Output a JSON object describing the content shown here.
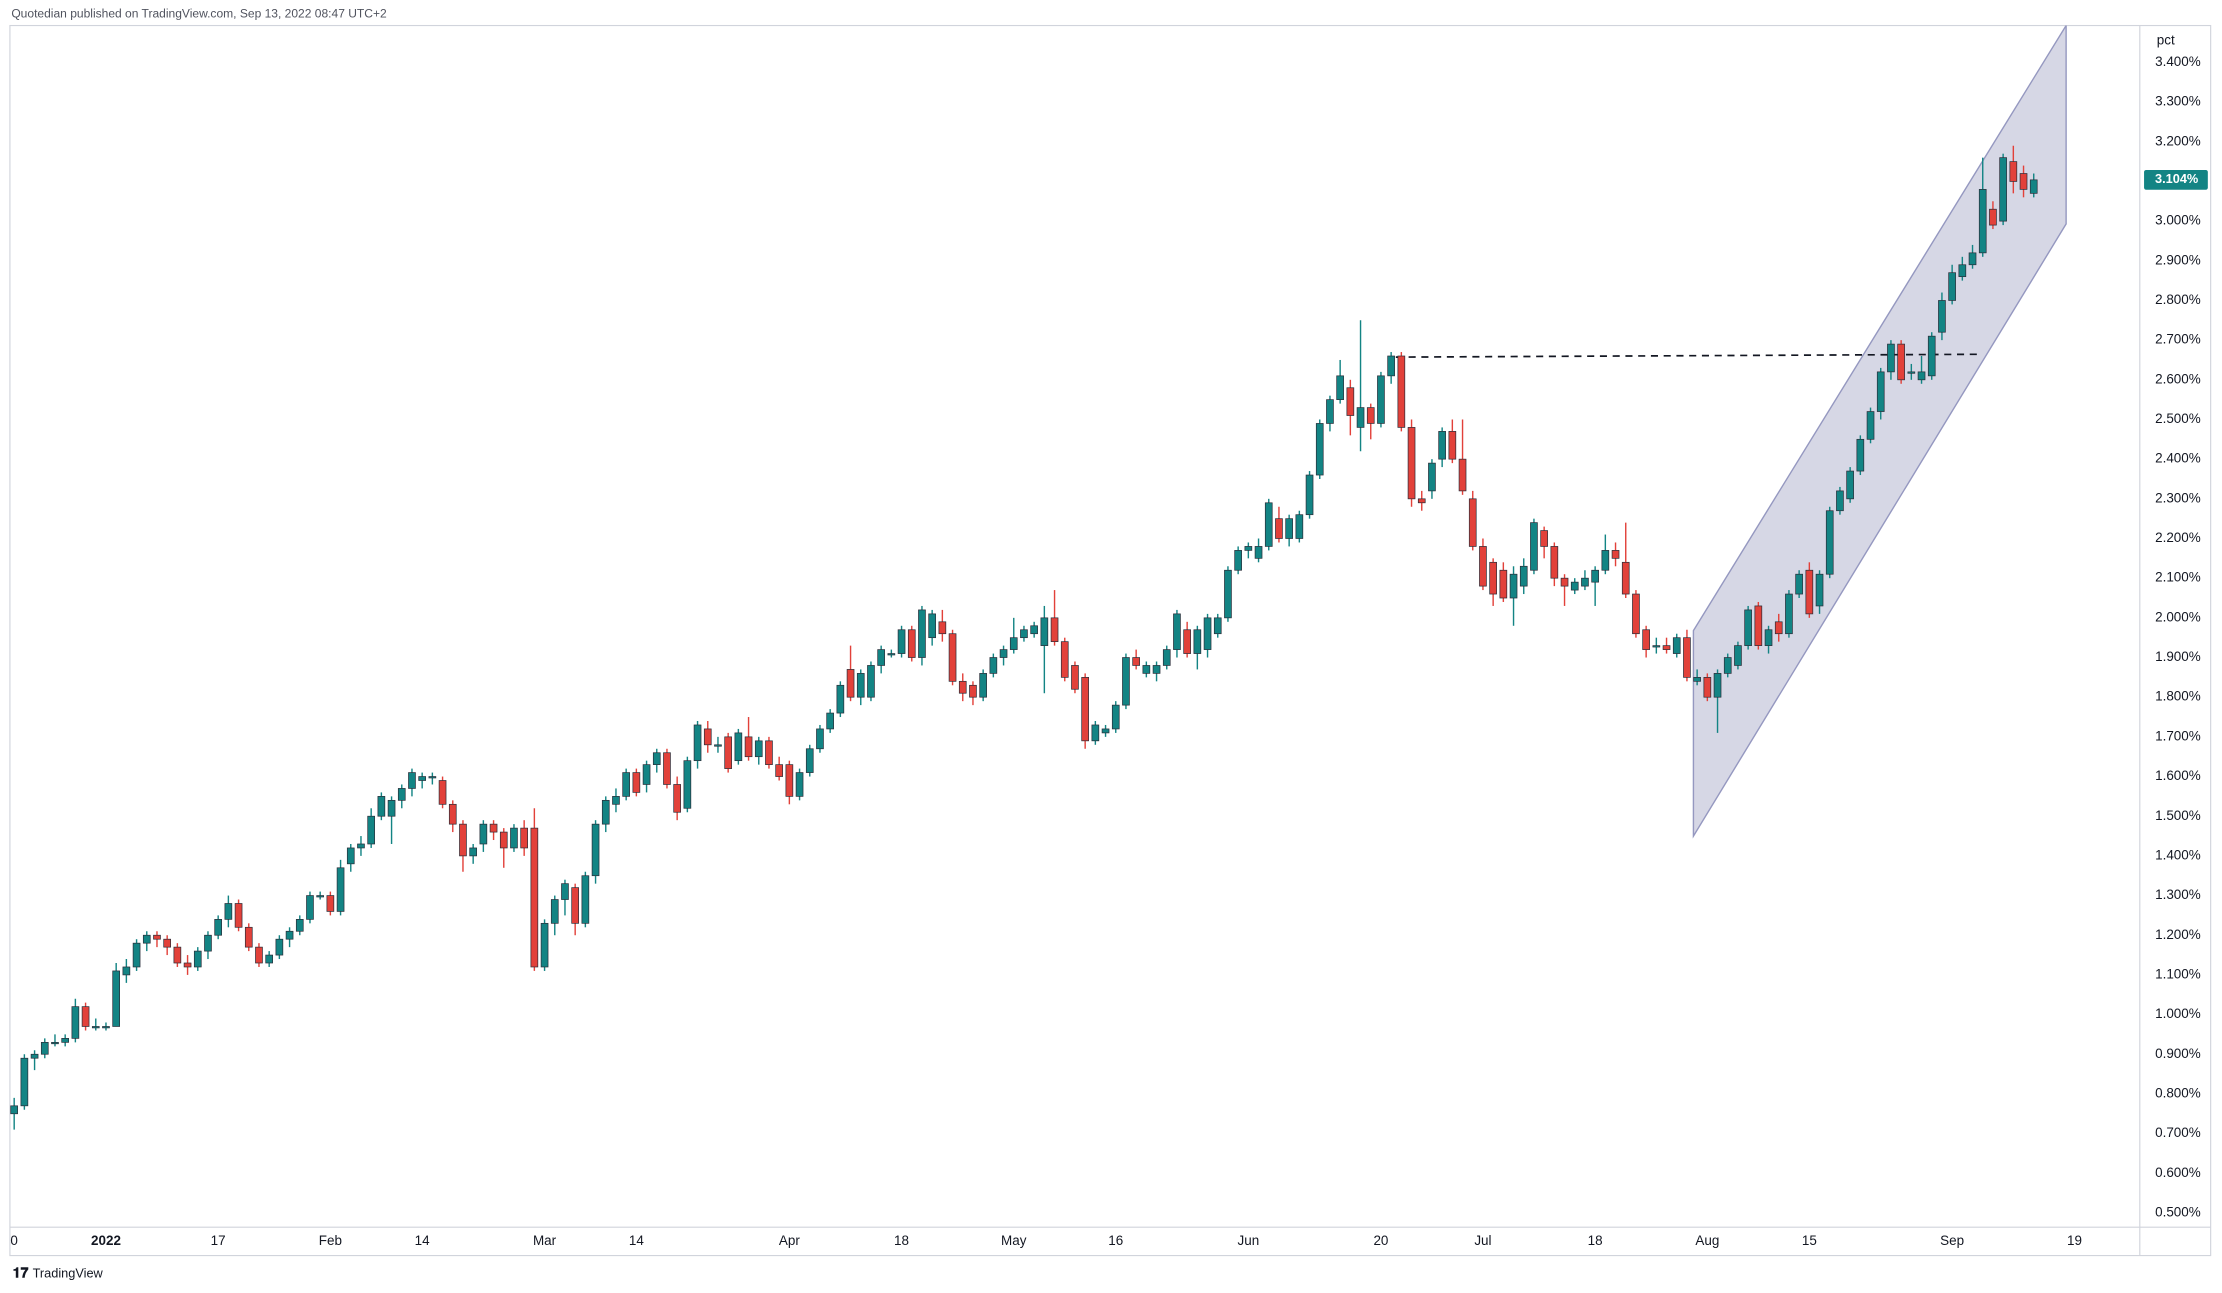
{
  "header": {
    "text": "Quotedian published on TradingView.com, Sep 13, 2022 08:47 UTC+2"
  },
  "footer": {
    "logo": "TradingView"
  },
  "chart_data": {
    "type": "candlestick",
    "y_axis_label": "pct",
    "grid": false,
    "xlim": [
      -1.39,
      208.4
    ],
    "xticks": [
      {
        "value": 0,
        "label": "0"
      },
      {
        "value": 9,
        "label": "2022"
      },
      {
        "value": 20,
        "label": "17"
      },
      {
        "value": 31,
        "label": "Feb"
      },
      {
        "value": 40,
        "label": "14"
      },
      {
        "value": 52,
        "label": "Mar"
      },
      {
        "value": 61,
        "label": "14"
      },
      {
        "value": 76,
        "label": "Apr"
      },
      {
        "value": 87,
        "label": "18"
      },
      {
        "value": 98,
        "label": "May"
      },
      {
        "value": 108,
        "label": "16"
      },
      {
        "value": 121,
        "label": "Jun"
      },
      {
        "value": 134,
        "label": "20"
      },
      {
        "value": 144,
        "label": "Jul"
      },
      {
        "value": 155,
        "label": "18"
      },
      {
        "value": 166,
        "label": "Aug"
      },
      {
        "value": 176,
        "label": "15"
      },
      {
        "value": 190,
        "label": "Sep"
      },
      {
        "value": 202,
        "label": "19"
      }
    ],
    "ylim": [
      0.464,
      3.493
    ],
    "yticks": [
      {
        "value": 0.5,
        "label": "0.500%"
      },
      {
        "value": 0.6,
        "label": "0.600%"
      },
      {
        "value": 0.7,
        "label": "0.700%"
      },
      {
        "value": 0.8,
        "label": "0.800%"
      },
      {
        "value": 0.9,
        "label": "0.900%"
      },
      {
        "value": 1.0,
        "label": "1.000%"
      },
      {
        "value": 1.1,
        "label": "1.100%"
      },
      {
        "value": 1.2,
        "label": "1.200%"
      },
      {
        "value": 1.3,
        "label": "1.300%"
      },
      {
        "value": 1.4,
        "label": "1.400%"
      },
      {
        "value": 1.5,
        "label": "1.500%"
      },
      {
        "value": 1.6,
        "label": "1.600%"
      },
      {
        "value": 1.7,
        "label": "1.700%"
      },
      {
        "value": 1.8,
        "label": "1.800%"
      },
      {
        "value": 1.9,
        "label": "1.900%"
      },
      {
        "value": 2.0,
        "label": "2.000%"
      },
      {
        "value": 2.1,
        "label": "2.100%"
      },
      {
        "value": 2.2,
        "label": "2.200%"
      },
      {
        "value": 2.3,
        "label": "2.300%"
      },
      {
        "value": 2.4,
        "label": "2.400%"
      },
      {
        "value": 2.5,
        "label": "2.500%"
      },
      {
        "value": 2.6,
        "label": "2.600%"
      },
      {
        "value": 2.7,
        "label": "2.700%"
      },
      {
        "value": 2.8,
        "label": "2.800%"
      },
      {
        "value": 2.9,
        "label": "2.900%"
      },
      {
        "value": 3.0,
        "label": "3.000%"
      },
      {
        "value": 3.1,
        "label": "3.100%"
      },
      {
        "value": 3.2,
        "label": "3.200%"
      },
      {
        "value": 3.3,
        "label": "3.300%"
      },
      {
        "value": 3.4,
        "label": "3.400%"
      }
    ],
    "series": [
      {
        "up_color": "#138484",
        "down_color": "#e2413a",
        "last_label": "3.104%",
        "open": [
          0.75,
          0.77,
          0.89,
          0.9,
          0.93,
          0.93,
          0.94,
          1.02,
          0.97,
          0.97,
          0.97,
          1.1,
          1.12,
          1.18,
          1.2,
          1.19,
          1.17,
          1.13,
          1.12,
          1.16,
          1.2,
          1.24,
          1.28,
          1.22,
          1.17,
          1.13,
          1.15,
          1.19,
          1.21,
          1.24,
          1.3,
          1.3,
          1.26,
          1.38,
          1.42,
          1.43,
          1.5,
          1.5,
          1.54,
          1.57,
          1.59,
          1.6,
          1.59,
          1.53,
          1.48,
          1.4,
          1.43,
          1.48,
          1.46,
          1.42,
          1.47,
          1.47,
          1.12,
          1.23,
          1.29,
          1.32,
          1.23,
          1.35,
          1.48,
          1.53,
          1.55,
          1.61,
          1.58,
          1.63,
          1.66,
          1.58,
          1.52,
          1.64,
          1.72,
          1.68,
          1.7,
          1.64,
          1.7,
          1.65,
          1.69,
          1.63,
          1.63,
          1.55,
          1.61,
          1.67,
          1.72,
          1.76,
          1.87,
          1.8,
          1.8,
          1.88,
          1.91,
          1.91,
          1.97,
          1.9,
          1.95,
          1.99,
          1.96,
          1.84,
          1.83,
          1.8,
          1.86,
          1.9,
          1.92,
          1.95,
          1.96,
          1.93,
          2.0,
          1.94,
          1.88,
          1.85,
          1.69,
          1.71,
          1.72,
          1.78,
          1.9,
          1.86,
          1.86,
          1.88,
          1.92,
          1.97,
          1.91,
          1.92,
          1.96,
          2.0,
          2.12,
          2.17,
          2.15,
          2.18,
          2.25,
          2.2,
          2.2,
          2.26,
          2.36,
          2.49,
          2.55,
          2.58,
          2.48,
          2.53,
          2.49,
          2.61,
          2.66,
          2.48,
          2.3,
          2.32,
          2.4,
          2.47,
          2.4,
          2.3,
          2.18,
          2.14,
          2.12,
          2.05,
          2.08,
          2.12,
          2.22,
          2.18,
          2.1,
          2.07,
          2.08,
          2.09,
          2.12,
          2.17,
          2.14,
          2.06,
          1.97,
          1.93,
          1.93,
          1.91,
          1.95,
          1.84,
          1.85,
          1.8,
          1.86,
          1.88,
          1.93,
          2.03,
          1.93,
          1.99,
          1.96,
          2.06,
          2.12,
          2.03,
          2.11,
          2.27,
          2.3,
          2.37,
          2.45,
          2.52,
          2.62,
          2.69,
          2.62,
          2.6,
          2.61,
          2.72,
          2.8,
          2.86,
          2.89,
          2.92,
          3.03,
          3.0,
          3.15,
          3.12,
          3.07
        ],
        "high": [
          0.79,
          0.9,
          0.91,
          0.94,
          0.95,
          0.95,
          1.04,
          1.03,
          0.99,
          0.98,
          1.13,
          1.14,
          1.19,
          1.21,
          1.21,
          1.2,
          1.18,
          1.15,
          1.17,
          1.21,
          1.25,
          1.3,
          1.29,
          1.23,
          1.18,
          1.16,
          1.2,
          1.22,
          1.25,
          1.31,
          1.31,
          1.31,
          1.39,
          1.43,
          1.45,
          1.52,
          1.56,
          1.55,
          1.58,
          1.62,
          1.61,
          1.61,
          1.6,
          1.54,
          1.49,
          1.43,
          1.49,
          1.49,
          1.47,
          1.48,
          1.49,
          1.52,
          1.24,
          1.3,
          1.34,
          1.33,
          1.36,
          1.49,
          1.55,
          1.57,
          1.62,
          1.62,
          1.64,
          1.67,
          1.67,
          1.6,
          1.65,
          1.74,
          1.74,
          1.7,
          1.71,
          1.72,
          1.75,
          1.7,
          1.7,
          1.65,
          1.64,
          1.62,
          1.68,
          1.73,
          1.77,
          1.84,
          1.93,
          1.87,
          1.89,
          1.93,
          1.92,
          1.98,
          1.98,
          2.03,
          2.02,
          2.02,
          1.97,
          1.86,
          1.84,
          1.87,
          1.91,
          1.93,
          2.0,
          1.98,
          1.99,
          2.03,
          2.07,
          1.95,
          1.89,
          1.86,
          1.74,
          1.73,
          1.79,
          1.91,
          1.92,
          1.89,
          1.89,
          1.93,
          2.02,
          1.99,
          1.98,
          2.01,
          2.01,
          2.13,
          2.18,
          2.19,
          2.2,
          2.3,
          2.28,
          2.26,
          2.27,
          2.37,
          2.5,
          2.56,
          2.65,
          2.6,
          2.75,
          2.54,
          2.62,
          2.67,
          2.67,
          2.5,
          2.32,
          2.4,
          2.48,
          2.5,
          2.5,
          2.32,
          2.2,
          2.15,
          2.14,
          2.13,
          2.15,
          2.25,
          2.23,
          2.19,
          2.11,
          2.1,
          2.12,
          2.13,
          2.21,
          2.19,
          2.24,
          2.07,
          1.98,
          1.95,
          1.95,
          1.96,
          1.97,
          1.87,
          1.86,
          1.87,
          1.91,
          1.94,
          2.03,
          2.04,
          1.98,
          2.01,
          2.07,
          2.12,
          2.14,
          2.12,
          2.28,
          2.33,
          2.38,
          2.46,
          2.53,
          2.63,
          2.7,
          2.7,
          2.64,
          2.66,
          2.72,
          2.82,
          2.89,
          2.91,
          2.94,
          3.16,
          3.05,
          3.17,
          3.19,
          3.14,
          3.12
        ],
        "low": [
          0.71,
          0.76,
          0.86,
          0.89,
          0.92,
          0.92,
          0.93,
          0.96,
          0.96,
          0.96,
          0.97,
          1.08,
          1.11,
          1.16,
          1.17,
          1.15,
          1.12,
          1.1,
          1.11,
          1.14,
          1.19,
          1.22,
          1.21,
          1.16,
          1.12,
          1.12,
          1.14,
          1.17,
          1.2,
          1.23,
          1.29,
          1.25,
          1.25,
          1.36,
          1.4,
          1.42,
          1.49,
          1.43,
          1.52,
          1.55,
          1.57,
          1.58,
          1.52,
          1.46,
          1.36,
          1.38,
          1.41,
          1.44,
          1.37,
          1.41,
          1.4,
          1.11,
          1.11,
          1.2,
          1.25,
          1.2,
          1.22,
          1.33,
          1.46,
          1.51,
          1.54,
          1.55,
          1.56,
          1.61,
          1.57,
          1.49,
          1.51,
          1.62,
          1.66,
          1.66,
          1.61,
          1.63,
          1.64,
          1.63,
          1.62,
          1.59,
          1.53,
          1.54,
          1.6,
          1.66,
          1.71,
          1.75,
          1.79,
          1.78,
          1.79,
          1.86,
          1.9,
          1.9,
          1.89,
          1.88,
          1.93,
          1.94,
          1.83,
          1.79,
          1.78,
          1.79,
          1.85,
          1.88,
          1.91,
          1.94,
          1.95,
          1.81,
          1.93,
          1.84,
          1.81,
          1.67,
          1.68,
          1.7,
          1.71,
          1.77,
          1.87,
          1.85,
          1.84,
          1.87,
          1.9,
          1.9,
          1.87,
          1.9,
          1.95,
          1.99,
          2.11,
          2.15,
          2.14,
          2.17,
          2.19,
          2.18,
          2.19,
          2.25,
          2.35,
          2.47,
          2.54,
          2.46,
          2.42,
          2.45,
          2.48,
          2.59,
          2.47,
          2.28,
          2.27,
          2.3,
          2.38,
          2.39,
          2.31,
          2.17,
          2.07,
          2.03,
          2.04,
          1.98,
          2.06,
          2.11,
          2.15,
          2.08,
          2.03,
          2.06,
          2.07,
          2.03,
          2.11,
          2.13,
          2.05,
          1.95,
          1.9,
          1.91,
          1.91,
          1.9,
          1.84,
          1.83,
          1.79,
          1.71,
          1.85,
          1.87,
          1.92,
          1.92,
          1.91,
          1.94,
          1.95,
          2.05,
          2.0,
          2.01,
          2.1,
          2.26,
          2.29,
          2.36,
          2.44,
          2.5,
          2.6,
          2.59,
          2.6,
          2.59,
          2.6,
          2.7,
          2.79,
          2.85,
          2.88,
          2.91,
          2.98,
          2.99,
          3.07,
          3.06,
          3.06
        ],
        "close": [
          0.77,
          0.89,
          0.9,
          0.93,
          0.93,
          0.94,
          1.02,
          0.97,
          0.97,
          0.97,
          1.11,
          1.12,
          1.18,
          1.2,
          1.19,
          1.17,
          1.13,
          1.12,
          1.16,
          1.2,
          1.24,
          1.28,
          1.22,
          1.17,
          1.13,
          1.15,
          1.19,
          1.21,
          1.24,
          1.3,
          1.3,
          1.26,
          1.37,
          1.42,
          1.43,
          1.5,
          1.55,
          1.54,
          1.57,
          1.61,
          1.6,
          1.6,
          1.53,
          1.48,
          1.4,
          1.42,
          1.48,
          1.46,
          1.42,
          1.47,
          1.42,
          1.12,
          1.23,
          1.29,
          1.33,
          1.23,
          1.35,
          1.48,
          1.54,
          1.55,
          1.61,
          1.56,
          1.63,
          1.66,
          1.58,
          1.51,
          1.64,
          1.73,
          1.68,
          1.68,
          1.62,
          1.71,
          1.65,
          1.69,
          1.63,
          1.6,
          1.55,
          1.61,
          1.67,
          1.72,
          1.76,
          1.83,
          1.8,
          1.86,
          1.88,
          1.92,
          1.91,
          1.97,
          1.9,
          2.02,
          2.01,
          1.96,
          1.84,
          1.81,
          1.8,
          1.86,
          1.9,
          1.92,
          1.95,
          1.97,
          1.98,
          2.0,
          1.94,
          1.85,
          1.82,
          1.69,
          1.73,
          1.72,
          1.78,
          1.9,
          1.88,
          1.88,
          1.88,
          1.92,
          2.01,
          1.91,
          1.97,
          2.0,
          2.0,
          2.12,
          2.17,
          2.18,
          2.18,
          2.29,
          2.2,
          2.25,
          2.26,
          2.36,
          2.49,
          2.55,
          2.61,
          2.51,
          2.53,
          2.49,
          2.61,
          2.66,
          2.48,
          2.3,
          2.29,
          2.39,
          2.47,
          2.4,
          2.32,
          2.18,
          2.08,
          2.06,
          2.05,
          2.11,
          2.13,
          2.24,
          2.18,
          2.1,
          2.08,
          2.09,
          2.1,
          2.12,
          2.17,
          2.15,
          2.06,
          1.96,
          1.92,
          1.93,
          1.92,
          1.95,
          1.85,
          1.85,
          1.8,
          1.86,
          1.9,
          1.93,
          2.02,
          1.93,
          1.97,
          1.96,
          2.06,
          2.11,
          2.01,
          2.11,
          2.27,
          2.32,
          2.37,
          2.45,
          2.52,
          2.62,
          2.69,
          2.6,
          2.62,
          2.62,
          2.71,
          2.8,
          2.87,
          2.89,
          2.92,
          3.08,
          2.99,
          3.16,
          3.1,
          3.08,
          3.104
        ]
      }
    ]
  }
}
